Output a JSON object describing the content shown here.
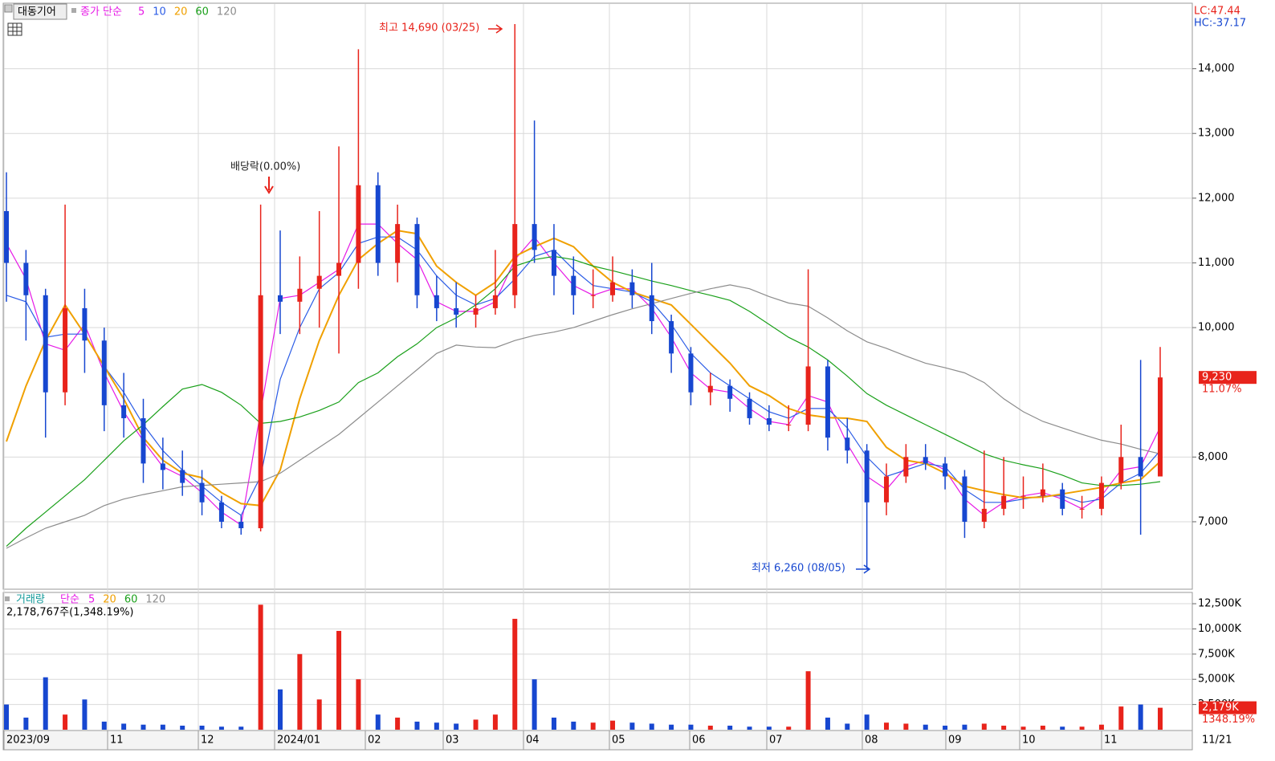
{
  "chart_data": {
    "type": "candlestick",
    "title": "대동기어",
    "legend_label": "종가 단순",
    "up_color": "#e8231b",
    "down_color": "#1747d0",
    "open": [
      11800,
      11000,
      10500,
      9000,
      10300,
      9800,
      8800,
      8600,
      7900,
      7800,
      7600,
      7300,
      7000,
      6900,
      10500,
      10400,
      10600,
      10800,
      11000,
      12200,
      11000,
      11600,
      10500,
      10300,
      10200,
      10300,
      10500,
      11600,
      11200,
      10800,
      10500,
      10500,
      10700,
      10500,
      10100,
      9600,
      9000,
      9100,
      8900,
      8600,
      8500,
      8500,
      9400,
      8300,
      8100,
      7300,
      7700,
      8000,
      7900,
      7700,
      7000,
      7200,
      7400,
      7400,
      7500,
      7200,
      7200,
      7600,
      8000,
      7700
    ],
    "high": [
      12400,
      11200,
      10600,
      11900,
      10600,
      10000,
      9300,
      8900,
      8300,
      8100,
      7800,
      7400,
      7100,
      11900,
      11500,
      11100,
      11800,
      12800,
      14300,
      12400,
      11900,
      11700,
      10800,
      10700,
      10500,
      11200,
      14690,
      13200,
      11600,
      11100,
      10900,
      11100,
      10900,
      11000,
      10200,
      9700,
      9300,
      9200,
      9000,
      8800,
      8800,
      10900,
      9500,
      8600,
      8200,
      7900,
      8200,
      8200,
      8000,
      7800,
      8100,
      8000,
      7700,
      7900,
      7600,
      7400,
      7700,
      8500,
      9500,
      9700
    ],
    "low": [
      10400,
      9800,
      8300,
      8800,
      9300,
      8400,
      8300,
      7600,
      7500,
      7400,
      7100,
      6900,
      6800,
      6850,
      9900,
      9900,
      10000,
      9600,
      10600,
      10800,
      10700,
      10300,
      10100,
      10000,
      10000,
      10200,
      10300,
      11000,
      10500,
      10200,
      10300,
      10400,
      10300,
      9900,
      9300,
      8800,
      8800,
      8700,
      8500,
      8400,
      8400,
      8400,
      8100,
      7900,
      6260,
      7100,
      7600,
      7800,
      7500,
      6750,
      6900,
      7100,
      7200,
      7300,
      7100,
      7050,
      7100,
      7500,
      6800,
      7700
    ],
    "close": [
      11000,
      10500,
      9000,
      10300,
      9800,
      8800,
      8600,
      7900,
      7800,
      7600,
      7300,
      7000,
      6900,
      10500,
      10400,
      10600,
      10800,
      11000,
      12200,
      11000,
      11600,
      10500,
      10300,
      10200,
      10300,
      10500,
      11600,
      11200,
      10800,
      10500,
      10500,
      10700,
      10500,
      10100,
      9600,
      9000,
      9100,
      8900,
      8600,
      8500,
      8500,
      9400,
      8300,
      8100,
      7300,
      7700,
      8000,
      7900,
      7700,
      7000,
      7200,
      7400,
      7400,
      7500,
      7200,
      7200,
      7600,
      8000,
      7700,
      9230
    ],
    "series": [
      {
        "name": "5",
        "color": "#e619e6",
        "values": [
          11300,
          10750,
          9750,
          9650,
          10050,
          9300,
          8700,
          8250,
          7850,
          7700,
          7450,
          7150,
          6950,
          8700,
          10450,
          10500,
          10700,
          10900,
          11600,
          11600,
          11300,
          11050,
          10400,
          10250,
          10250,
          10400,
          11050,
          11400,
          11000,
          10650,
          10500,
          10600,
          10600,
          10300,
          9850,
          9300,
          9050,
          9000,
          8750,
          8550,
          8500,
          8950,
          8850,
          8200,
          7700,
          7500,
          7850,
          7950,
          7800,
          7350,
          7100,
          7300,
          7400,
          7450,
          7350,
          7200,
          7400,
          7800,
          7850,
          8460
        ]
      },
      {
        "name": "10",
        "color": "#2b5ce6",
        "values": [
          10500,
          10400,
          9850,
          9900,
          9900,
          9400,
          9000,
          8500,
          8100,
          7800,
          7550,
          7300,
          7100,
          7700,
          9200,
          10000,
          10600,
          10850,
          11300,
          11400,
          11400,
          11200,
          10800,
          10500,
          10350,
          10450,
          10750,
          11100,
          11200,
          10900,
          10650,
          10600,
          10550,
          10400,
          10050,
          9600,
          9300,
          9100,
          8900,
          8700,
          8600,
          8750,
          8750,
          8450,
          8000,
          7700,
          7800,
          7900,
          7850,
          7500,
          7300,
          7300,
          7350,
          7400,
          7400,
          7300,
          7350,
          7600,
          7750,
          8100
        ]
      },
      {
        "name": "20",
        "color": "#f0a000",
        "values": [
          8240,
          9100,
          9800,
          10350,
          9900,
          9400,
          8900,
          8300,
          7950,
          7750,
          7680,
          7450,
          7280,
          7250,
          7800,
          8900,
          9800,
          10500,
          11050,
          11300,
          11500,
          11450,
          10950,
          10700,
          10500,
          10700,
          11100,
          11250,
          11380,
          11250,
          10950,
          10700,
          10550,
          10450,
          10350,
          10050,
          9750,
          9450,
          9100,
          8950,
          8750,
          8650,
          8610,
          8600,
          8550,
          8150,
          7950,
          7900,
          7750,
          7550,
          7480,
          7420,
          7370,
          7380,
          7430,
          7480,
          7530,
          7600,
          7650,
          7930
        ]
      },
      {
        "name": "60",
        "color": "#1aa01a",
        "values": [
          6620,
          6900,
          7150,
          7400,
          7650,
          7950,
          8250,
          8500,
          8780,
          9050,
          9120,
          9000,
          8800,
          8520,
          8550,
          8620,
          8720,
          8850,
          9150,
          9300,
          9550,
          9750,
          10000,
          10150,
          10350,
          10600,
          10950,
          11050,
          11100,
          11050,
          10950,
          10880,
          10800,
          10720,
          10650,
          10570,
          10500,
          10420,
          10250,
          10050,
          9850,
          9700,
          9500,
          9250,
          8980,
          8800,
          8650,
          8500,
          8350,
          8200,
          8050,
          7950,
          7880,
          7820,
          7720,
          7600,
          7560,
          7560,
          7580,
          7620
        ]
      },
      {
        "name": "120",
        "color": "#8c8c8c",
        "values": [
          6590,
          6750,
          6900,
          7000,
          7100,
          7250,
          7350,
          7420,
          7480,
          7540,
          7560,
          7580,
          7600,
          7620,
          7750,
          7950,
          8150,
          8350,
          8600,
          8850,
          9100,
          9350,
          9600,
          9730,
          9700,
          9690,
          9800,
          9880,
          9930,
          10000,
          10100,
          10200,
          10290,
          10370,
          10450,
          10530,
          10600,
          10660,
          10600,
          10480,
          10380,
          10330,
          10150,
          9950,
          9780,
          9680,
          9560,
          9450,
          9380,
          9300,
          9150,
          8900,
          8700,
          8550,
          8450,
          8350,
          8260,
          8200,
          8120,
          8050
        ]
      }
    ],
    "ylim": [
      5970,
      15000
    ],
    "yticks": [
      {
        "value": 7000,
        "label": "7,000"
      },
      {
        "value": 8000,
        "label": "8,000"
      },
      {
        "value": 10000,
        "label": "10,000"
      },
      {
        "value": 11000,
        "label": "11,000"
      },
      {
        "value": 12000,
        "label": "12,000"
      },
      {
        "value": 13000,
        "label": "13,000"
      },
      {
        "value": 14000,
        "label": "14,000"
      }
    ],
    "x_labels": [
      "2023/09",
      "11",
      "12",
      "2024/01",
      "02",
      "03",
      "04",
      "05",
      "06",
      "07",
      "08",
      "09",
      "10",
      "11",
      "11/21"
    ],
    "annotations": {
      "high": "최고 14,690 (03/25)",
      "dividend": "배당락(0.00%)",
      "low": "최저 6,260 (08/05)"
    },
    "lc": "LC:47.44",
    "hc": "HC:-37.17",
    "last_price_label": "9,230",
    "last_change_label": "11.07%",
    "volume": {
      "legend_label": "거래량",
      "legend_sub": "단순",
      "ma_legend": [
        {
          "name": "5",
          "color": "#e619e6"
        },
        {
          "name": "20",
          "color": "#f0a000"
        },
        {
          "name": "60",
          "color": "#1aa01a"
        },
        {
          "name": "120",
          "color": "#8c8c8c"
        }
      ],
      "info": "2,178,767주(1,348.19%)",
      "values": [
        2500,
        1200,
        5200,
        1500,
        3000,
        800,
        600,
        500,
        500,
        400,
        400,
        300,
        300,
        12400,
        4000,
        7500,
        3000,
        9800,
        5000,
        1500,
        1200,
        800,
        700,
        600,
        1000,
        1500,
        11000,
        5000,
        1200,
        800,
        700,
        900,
        700,
        600,
        500,
        500,
        400,
        400,
        300,
        300,
        300,
        5800,
        1200,
        600,
        1500,
        700,
        600,
        500,
        400,
        500,
        600,
        400,
        300,
        400,
        300,
        300,
        500,
        2300,
        2500,
        2179
      ],
      "ylim": [
        0,
        13460
      ],
      "yticks": [
        {
          "value": 2500,
          "label": "2,500K"
        },
        {
          "value": 5000,
          "label": "5,000K"
        },
        {
          "value": 7500,
          "label": "7,500K"
        },
        {
          "value": 10000,
          "label": "10,000K"
        },
        {
          "value": 12500,
          "label": "12,500K"
        }
      ],
      "last_label": "2,179K",
      "last_pct": "1348.19%"
    }
  }
}
